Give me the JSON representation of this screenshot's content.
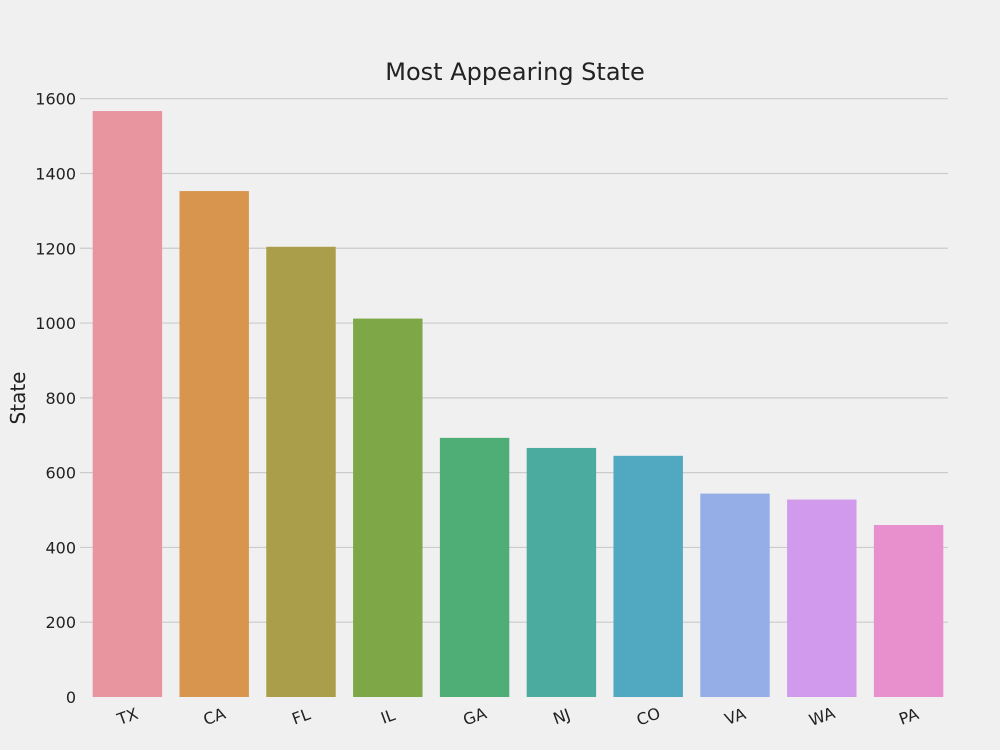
{
  "chart_data": {
    "type": "bar",
    "title": "Most Appearing State",
    "xlabel": "",
    "ylabel": "State",
    "categories": [
      "TX",
      "CA",
      "FL",
      "IL",
      "GA",
      "NJ",
      "CO",
      "VA",
      "WA",
      "PA"
    ],
    "values": [
      1567,
      1353,
      1204,
      1012,
      693,
      666,
      645,
      544,
      528,
      460
    ],
    "colors": [
      "#e8959f",
      "#d8954e",
      "#aa9e4a",
      "#7ea848",
      "#4fae76",
      "#4cab9f",
      "#50a8c1",
      "#96aee7",
      "#d19aec",
      "#e88fce"
    ],
    "ylim": [
      0,
      1650
    ],
    "yticks": [
      0,
      200,
      400,
      600,
      800,
      1000,
      1200,
      1400,
      1600
    ],
    "grid": true,
    "style": "fivethirtyeight"
  }
}
